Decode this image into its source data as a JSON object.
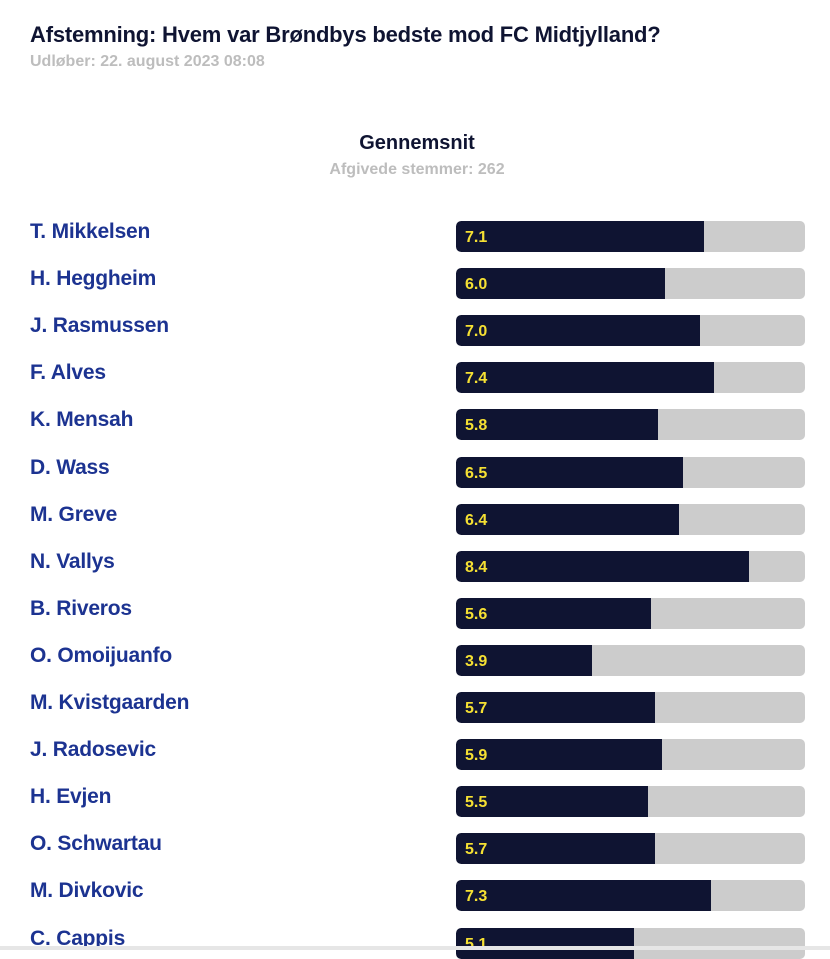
{
  "poll": {
    "title": "Afstemning: Hvem var Brøndbys bedste mod FC Midtjylland?",
    "expiry": "Udløber: 22. august 2023 08:08",
    "heading": "Gennemsnit",
    "votes": "Afgivede stemmer: 262"
  },
  "colors": {
    "bar": "#0f1432",
    "track": "#cccccc",
    "value_text": "#f5e033",
    "name_text": "#1c3391"
  },
  "chart_data": {
    "type": "bar",
    "orientation": "horizontal",
    "title": "Gennemsnit",
    "subtitle": "Afgivede stemmer: 262",
    "xlim": [
      0,
      10
    ],
    "categories": [
      "T. Mikkelsen",
      "H. Heggheim",
      "J. Rasmussen",
      "F. Alves",
      "K. Mensah",
      "D. Wass",
      "M. Greve",
      "N. Vallys",
      "B. Riveros",
      "O. Omoijuanfo",
      "M. Kvistgaarden",
      "J. Radosevic",
      "H. Evjen",
      "O. Schwartau",
      "M. Divkovic",
      "C. Cappis"
    ],
    "values": [
      7.1,
      6.0,
      7.0,
      7.4,
      5.8,
      6.5,
      6.4,
      8.4,
      5.6,
      3.9,
      5.7,
      5.9,
      5.5,
      5.7,
      7.3,
      5.1
    ],
    "labels": [
      "7.1",
      "6.0",
      "7.0",
      "7.4",
      "5.8",
      "6.5",
      "6.4",
      "8.4",
      "5.6",
      "3.9",
      "5.7",
      "5.9",
      "5.5",
      "5.7",
      "7.3",
      "5.1"
    ]
  }
}
